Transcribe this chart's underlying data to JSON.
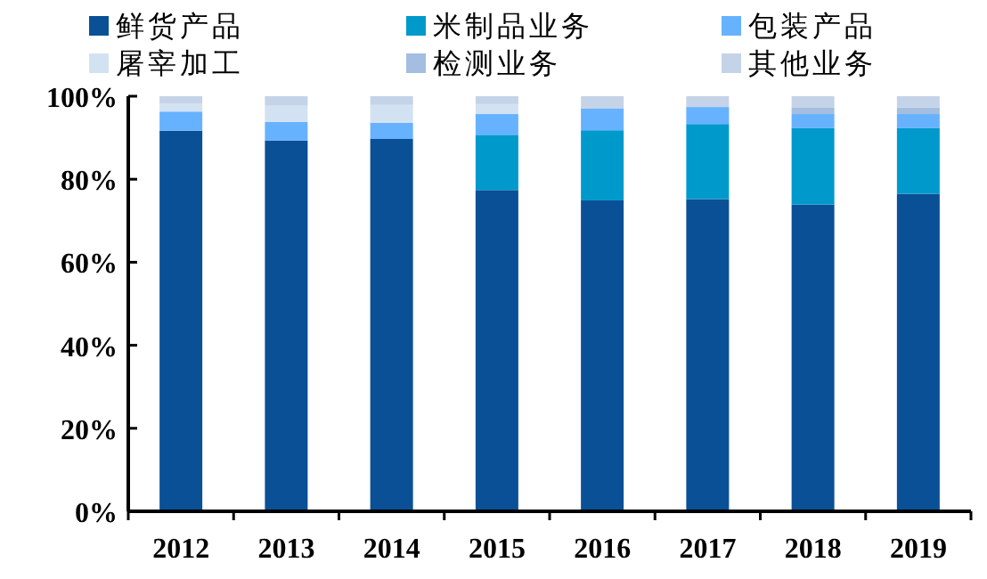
{
  "chart_data": {
    "type": "bar",
    "stacked": true,
    "legend": "top",
    "categories": [
      "2012",
      "2013",
      "2014",
      "2015",
      "2016",
      "2017",
      "2018",
      "2019"
    ],
    "series": [
      {
        "name": "鲜货产品",
        "color": "#0a5096",
        "values": [
          91.7,
          89.3,
          89.7,
          77.4,
          74.9,
          75.2,
          73.9,
          76.5
        ]
      },
      {
        "name": "米制品业务",
        "color": "#0099cc",
        "values": [
          0,
          0,
          0,
          13.3,
          16.9,
          18.1,
          18.4,
          15.8
        ]
      },
      {
        "name": "包装产品",
        "color": "#66b2ff",
        "values": [
          4.6,
          4.5,
          3.9,
          5.0,
          5.2,
          4.1,
          3.4,
          3.4
        ]
      },
      {
        "name": "屠宰加工",
        "color": "#d3e2f2",
        "values": [
          1.9,
          3.9,
          4.3,
          2.4,
          0,
          0,
          0,
          0
        ]
      },
      {
        "name": "检测业务",
        "color": "#a3bee0",
        "values": [
          0,
          0,
          0,
          0,
          0,
          0,
          1.5,
          1.6
        ]
      },
      {
        "name": "其他业务",
        "color": "#c5d3e8",
        "values": [
          1.8,
          2.3,
          2.1,
          1.9,
          3.0,
          2.6,
          2.8,
          2.7
        ]
      }
    ],
    "ylim": [
      0,
      100
    ],
    "yticks": [
      {
        "value": 0,
        "label": "0%"
      },
      {
        "value": 20,
        "label": "20%"
      },
      {
        "value": 40,
        "label": "40%"
      },
      {
        "value": 60,
        "label": "60%"
      },
      {
        "value": 80,
        "label": "80%"
      },
      {
        "value": 100,
        "label": "100%"
      }
    ]
  }
}
